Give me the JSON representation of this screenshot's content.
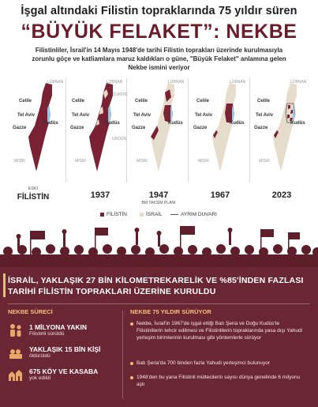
{
  "header": {
    "title_top": "İşgal altındaki Filistin topraklarında 75 yıldır süren",
    "title_main": "“BÜYÜK FELAKET”: NEKBE",
    "intro": "Filistinliler, İsrail'in 14 Mayıs 1948'de tarihi Filistin toprakları üzerinde kurulmasıyla zorunlu göçe ve katliamlara maruz kaldıkları o güne, \"Büyük Felaket\" anlamına gelen Nekbe ismini veriyor"
  },
  "maps": {
    "place_labels": {
      "lubnan": "LÜBNAN",
      "suriye": "SURİYE",
      "urdun": "ÜRDÜN",
      "misir": "MISIR",
      "celile": "Celile",
      "tel_aviv": "Tel Aviv",
      "kudus": "Kudüs",
      "gazze": "Gazze"
    },
    "columns": [
      {
        "year": "ESKİ FİLİSTİN",
        "year_line1": "ESKİ",
        "year_line2": "FİLİSTİN",
        "sub": ""
      },
      {
        "year": "1937",
        "sub": ""
      },
      {
        "year": "1947",
        "sub": "BM TAKSİM PLANI"
      },
      {
        "year": "1967",
        "sub": ""
      },
      {
        "year": "2023",
        "sub": ""
      }
    ]
  },
  "legend": {
    "palestine": "FİLİSTİN",
    "israel": "İSRAİL",
    "wall": "AYRIM DUVARI"
  },
  "colors": {
    "maroon": "#7a2233",
    "israel_beige": "#e6dccb",
    "panel": "#6b2633",
    "accent": "#f2c27a"
  },
  "panel": {
    "title": "İSRAİL, YAKLAŞIK 27 BİN KİLOMETREKARELİK VE %85'İNDEN FAZLASI TARİHİ FİLİSTİN TOPRAKLARI ÜZERİNE KURULDU",
    "left_head": "NEKBE SÜRECİ",
    "right_head": "NEKBE 75 YILDIR SÜRÜYOR",
    "stats": [
      {
        "big": "1 MİLYONA YAKIN",
        "small": "Filistinli sürüldü",
        "icon": "people-icon"
      },
      {
        "big": "YAKLAŞIK 15 BİN KİŞİ",
        "small": "öldürüldü",
        "icon": "casualties-icon"
      },
      {
        "big": "675 KÖY VE KASABA",
        "small": "yok edildi",
        "icon": "village-icon"
      }
    ],
    "bullets": [
      "Nekbe, İsrail'in 1967'de işgal ettiği Batı Şeria ve Doğu Kudüs'te Filistinlilerin tehcir edilmesi ve Filistinlilerin topraklarında yasa dışı Yahudi yerleşim birimlerinin kurulması gibi yöntemlerle sürüyor",
      "Batı Şeria'da 700 binden fazla Yahudi yerleşimci bulunuyor",
      "1948'den bu yana Filistinli mültecilerin sayısı dünya genelinde 6 milyonu aştı"
    ]
  }
}
